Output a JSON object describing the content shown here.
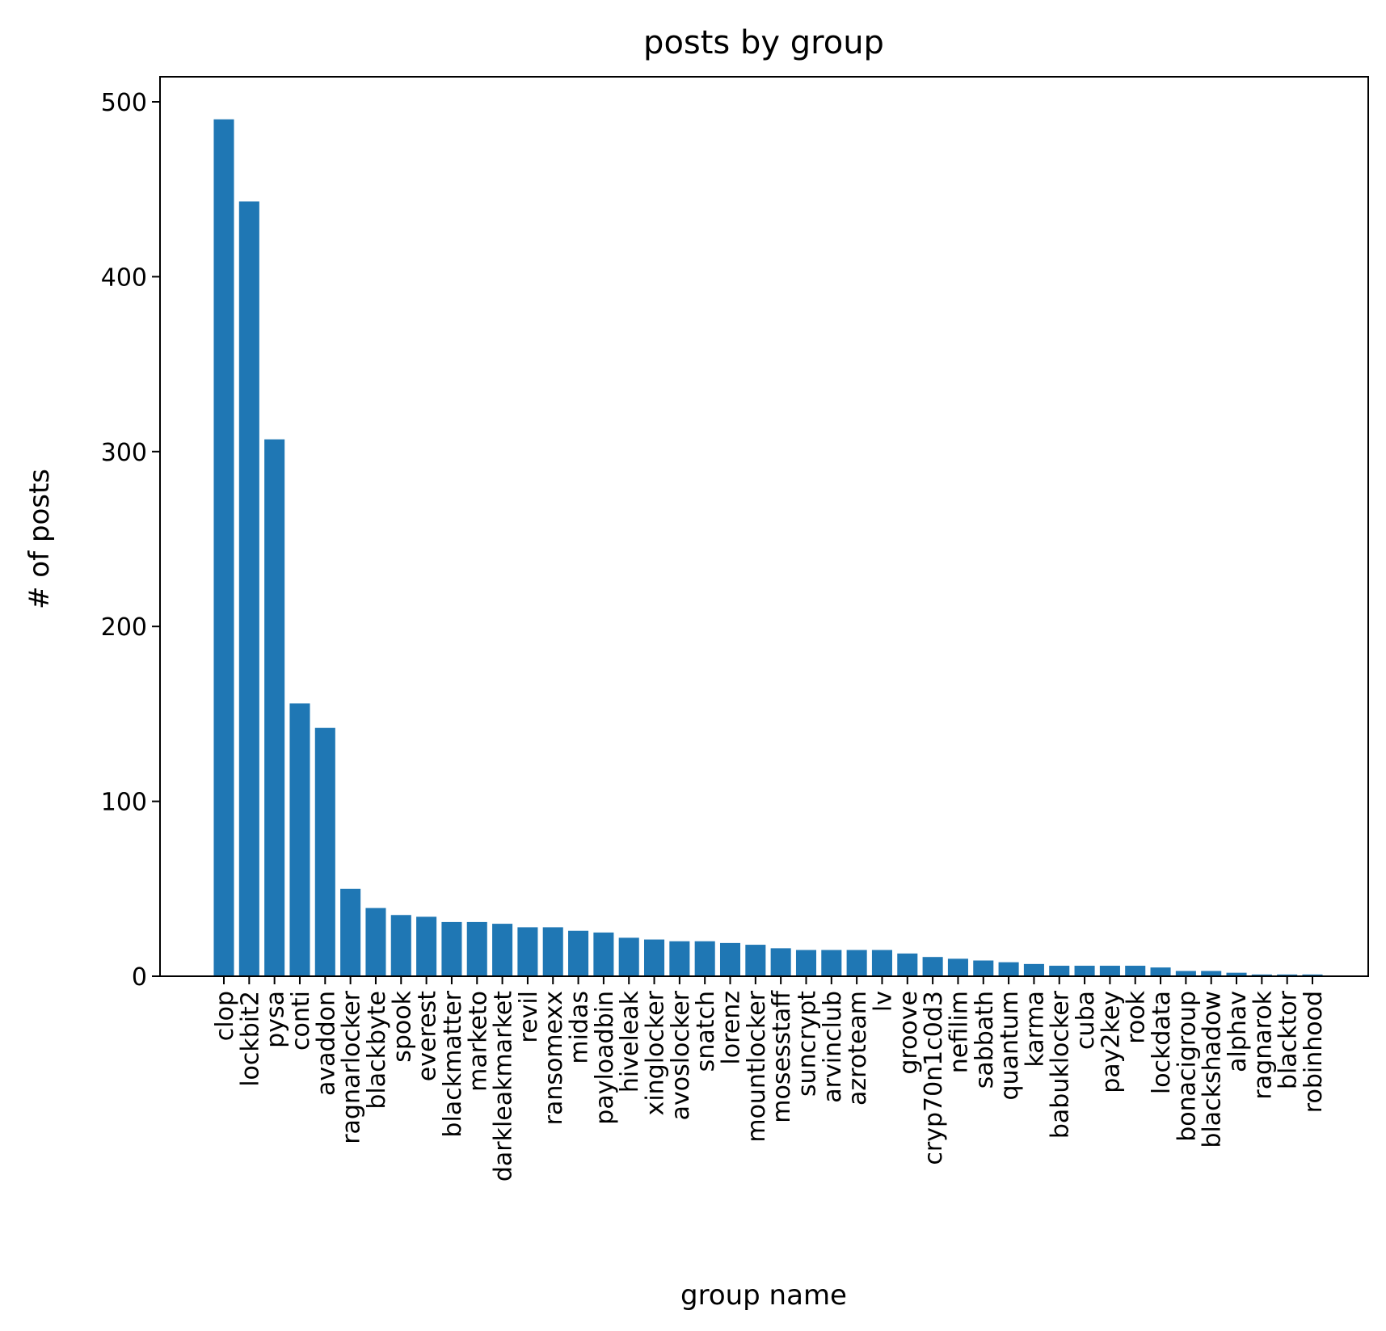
{
  "chart_data": {
    "type": "bar",
    "title": "posts by group",
    "xlabel": "group name",
    "ylabel": "# of posts",
    "ylim": [
      0,
      515
    ],
    "yticks": [
      0,
      100,
      200,
      300,
      400,
      500
    ],
    "grid": false,
    "bar_color": "#1f77b4",
    "categories": [
      "clop",
      "lockbit2",
      "pysa",
      "conti",
      "avaddon",
      "ragnarlocker",
      "blackbyte",
      "spook",
      "everest",
      "blackmatter",
      "marketo",
      "darkleakmarket",
      "revil",
      "ransomexx",
      "midas",
      "payloadbin",
      "hiveleak",
      "xinglocker",
      "avoslocker",
      "snatch",
      "lorenz",
      "mountlocker",
      "mosesstaff",
      "suncrypt",
      "arvinclub",
      "azroteam",
      "lv",
      "groove",
      "cryp70n1c0d3",
      "nefilim",
      "sabbath",
      "quantum",
      "karma",
      "babuklocker",
      "cuba",
      "pay2key",
      "rook",
      "lockdata",
      "bonacigroup",
      "blackshadow",
      "alphav",
      "ragnarok",
      "blacktor",
      "robinhood"
    ],
    "values": [
      490,
      443,
      307,
      156,
      142,
      50,
      39,
      35,
      34,
      31,
      31,
      30,
      28,
      28,
      26,
      25,
      22,
      21,
      20,
      20,
      19,
      18,
      16,
      15,
      15,
      15,
      15,
      13,
      11,
      10,
      9,
      8,
      7,
      6,
      6,
      6,
      6,
      5,
      3,
      3,
      2,
      1,
      1,
      1
    ]
  }
}
